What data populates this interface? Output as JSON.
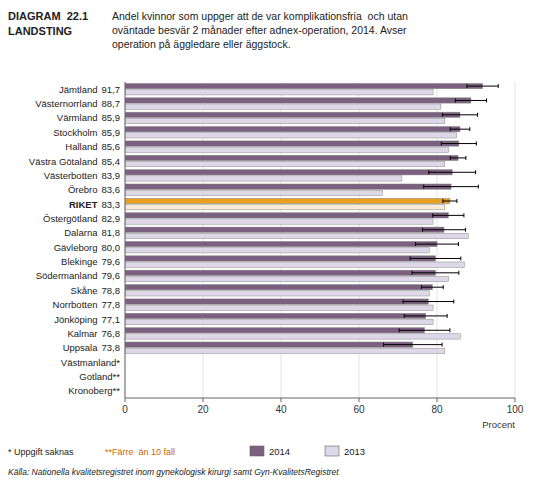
{
  "chart_data": {
    "type": "bar",
    "orientation": "horizontal",
    "title": "DIAGRAM  22.1\nLANDSTING",
    "subtitle": "Andel kvinnor som uppger att de var komplikationsfria  och utan\noväntade besvär 2 månader efter adnex-operation, 2014. Avser\noperation på äggledare eller äggstock.",
    "x_label": "Procent",
    "categories": [
      "Jämtland",
      "Västernorrland",
      "Värmland",
      "Stockholm",
      "Halland",
      "Västra Götaland",
      "Västerbotten",
      "Örebro",
      "RIKET",
      "Östergötland",
      "Dalarna",
      "Gävleborg",
      "Blekinge",
      "Södermanland",
      "Skåne",
      "Norrbotten",
      "Jönköping",
      "Kalmar",
      "Uppsala",
      "Västmanland*",
      "Gotland**",
      "Kronoberg**"
    ],
    "series": [
      {
        "name": "2014",
        "color": "#7b6080",
        "colors": [
          "#7b6080",
          "#7b6080",
          "#7b6080",
          "#7b6080",
          "#7b6080",
          "#7b6080",
          "#7b6080",
          "#7b6080",
          "#e8a020",
          "#7b6080",
          "#7b6080",
          "#7b6080",
          "#7b6080",
          "#7b6080",
          "#7b6080",
          "#7b6080",
          "#7b6080",
          "#7b6080",
          "#7b6080",
          "#7b6080",
          "#7b6080",
          "#7b6080"
        ],
        "values": [
          91.7,
          88.7,
          85.9,
          85.9,
          85.6,
          85.4,
          83.9,
          83.6,
          83.3,
          82.9,
          81.8,
          80.0,
          79.6,
          79.6,
          78.8,
          77.8,
          77.1,
          76.8,
          73.8,
          null,
          null,
          null
        ],
        "value_labels": [
          "91,7",
          "88,7",
          "85,9",
          "85,9",
          "85,6",
          "85,4",
          "83,9",
          "83,6",
          "83,3",
          "82,9",
          "81,8",
          "80,0",
          "79,6",
          "79,6",
          "78,8",
          "77,8",
          "77,1",
          "76,8",
          "73,8",
          null,
          null,
          null
        ],
        "error_low": [
          4.0,
          4.0,
          4.5,
          2.5,
          4.5,
          2.0,
          6.0,
          7.0,
          1.8,
          4.0,
          5.5,
          5.5,
          6.5,
          6.0,
          2.8,
          6.5,
          5.5,
          6.5,
          7.5,
          null,
          null,
          null
        ],
        "error_high": [
          4.0,
          4.0,
          4.5,
          2.5,
          4.5,
          2.0,
          6.0,
          7.0,
          1.8,
          4.0,
          5.5,
          5.5,
          6.5,
          6.0,
          2.8,
          6.5,
          5.5,
          6.5,
          7.5,
          null,
          null,
          null
        ]
      },
      {
        "name": "2013",
        "color": "#ddd8e8",
        "colors": [
          "#ddd8e8",
          "#ddd8e8",
          "#ddd8e8",
          "#ddd8e8",
          "#ddd8e8",
          "#ddd8e8",
          "#ddd8e8",
          "#ddd8e8",
          "#f8ead8",
          "#ddd8e8",
          "#ddd8e8",
          "#ddd8e8",
          "#ddd8e8",
          "#ddd8e8",
          "#ddd8e8",
          "#ddd8e8",
          "#ddd8e8",
          "#ddd8e8",
          "#ddd8e8",
          "#ddd8e8",
          "#ddd8e8",
          "#ddd8e8"
        ],
        "values": [
          79.0,
          81.0,
          82.0,
          85.0,
          83.0,
          82.0,
          71.0,
          66.0,
          82.0,
          79.0,
          88.0,
          78.0,
          87.0,
          83.0,
          78.0,
          79.0,
          79.0,
          86.0,
          82.0,
          null,
          null,
          null
        ]
      }
    ],
    "xlim": [
      0,
      100
    ],
    "xticks": [
      0,
      20,
      40,
      60,
      80,
      100
    ],
    "grid": true,
    "legend": "bottom",
    "annotations": [
      {
        "text": "* Uppgift saknas"
      },
      {
        "text": "**Färre  än 10 fall",
        "color": "#cc6600"
      },
      {
        "text": "Källa: Nationella kvalitetsregistret inom gynekologisk kirurgi samt Gyn-KvalitetsRegistret"
      }
    ]
  }
}
